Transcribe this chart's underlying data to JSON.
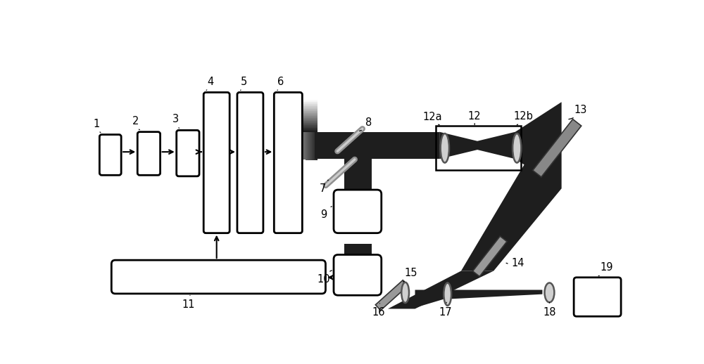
{
  "bg_color": "#ffffff",
  "dark_beam": "#1e1e1e",
  "box_fill": "#ffffff",
  "box_edge": "#000000",
  "lens_color": "#c8c8c8",
  "mirror_color": "#888888",
  "label_color": "#000000",
  "label_fontsize": 10.5,
  "fig_width": 10.0,
  "fig_height": 5.18
}
